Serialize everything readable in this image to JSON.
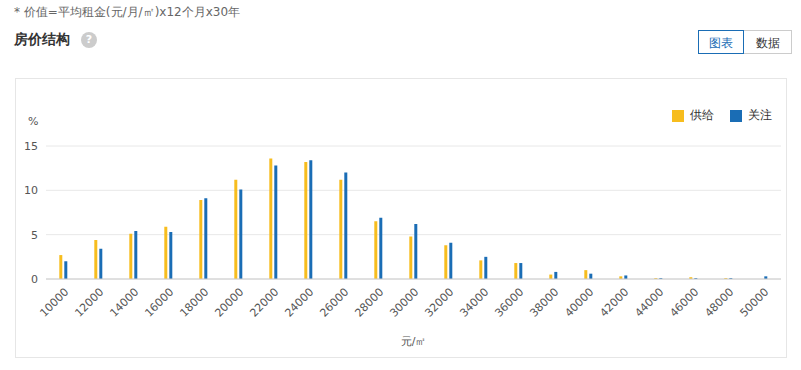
{
  "chart_data": {
    "type": "bar",
    "title": "房价结构",
    "subtitle": "* 价值=平均租金(元/月/㎡)x12个月x30年",
    "annotations": [
      "?",
      "图表",
      "数据"
    ],
    "x_label": "元/㎡",
    "y_label": "%",
    "categories": [
      "10000",
      "12000",
      "14000",
      "16000",
      "18000",
      "20000",
      "22000",
      "24000",
      "26000",
      "28000",
      "30000",
      "32000",
      "34000",
      "36000",
      "38000",
      "40000",
      "42000",
      "44000",
      "46000",
      "48000",
      "50000"
    ],
    "series": [
      {
        "name": "供给",
        "color": "#f7bd1e",
        "values": [
          2.7,
          4.4,
          5.1,
          5.9,
          8.9,
          11.2,
          13.6,
          13.2,
          11.2,
          6.5,
          4.8,
          3.8,
          2.1,
          1.8,
          0.5,
          1.0,
          0.3,
          0.1,
          0.2,
          0.1,
          0
        ]
      },
      {
        "name": "关注",
        "color": "#1a6db5",
        "values": [
          2.0,
          3.4,
          5.4,
          5.3,
          9.1,
          10.1,
          12.8,
          13.4,
          12.0,
          6.9,
          6.2,
          4.1,
          2.5,
          1.8,
          0.8,
          0.6,
          0.4,
          0.1,
          0.1,
          0.1,
          0.3
        ]
      }
    ],
    "ylim": [
      0,
      15
    ],
    "yticks": [
      0,
      5,
      10,
      15
    ],
    "grid": true,
    "legend": "top-right"
  }
}
